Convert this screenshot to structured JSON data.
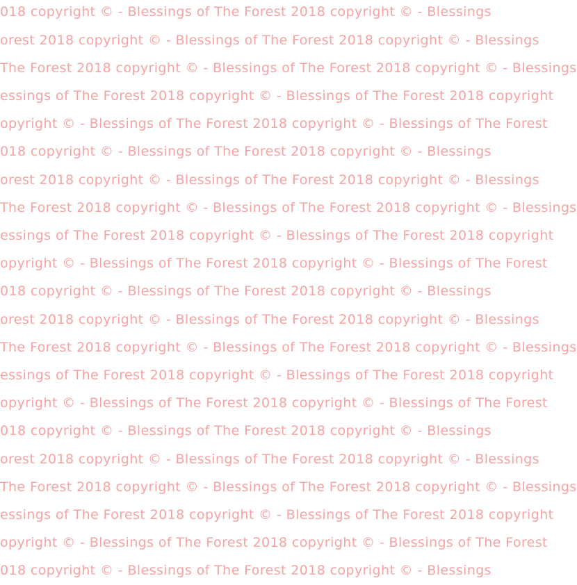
{
  "watermark": {
    "phrase": "Blessings of The Forest 2018 copyright © - ",
    "color": "#f5a3a3",
    "rows": [
      "018 copyright © - Blessings of The Forest 2018 copyright © - Blessings",
      "orest 2018 copyright © - Blessings of The Forest 2018 copyright © - Blessings",
      " The Forest 2018 copyright © - Blessings of The Forest 2018 copyright © - Blessings",
      "essings of The Forest 2018 copyright © - Blessings of The Forest 2018 copyright",
      "opyright © - Blessings of The Forest 2018 copyright © - Blessings of The Forest",
      "018 copyright © - Blessings of The Forest 2018 copyright © - Blessings",
      "orest 2018 copyright © - Blessings of The Forest 2018 copyright © - Blessings",
      " The Forest 2018 copyright © - Blessings of The Forest 2018 copyright © - Blessings",
      "essings of The Forest 2018 copyright © - Blessings of The Forest 2018 copyright",
      "opyright © - Blessings of The Forest 2018 copyright © - Blessings of The Forest",
      "018 copyright © - Blessings of The Forest 2018 copyright © - Blessings",
      "orest 2018 copyright © - Blessings of The Forest 2018 copyright © - Blessings",
      " The Forest 2018 copyright © - Blessings of The Forest 2018 copyright © - Blessings",
      "essings of The Forest 2018 copyright © - Blessings of The Forest 2018 copyright",
      "opyright © - Blessings of The Forest 2018 copyright © - Blessings of The Forest",
      "018 copyright © - Blessings of The Forest 2018 copyright © - Blessings",
      "orest 2018 copyright © - Blessings of The Forest 2018 copyright © - Blessings",
      " The Forest 2018 copyright © - Blessings of The Forest 2018 copyright © - Blessings",
      "essings of The Forest 2018 copyright © - Blessings of The Forest 2018 copyright",
      "opyright © - Blessings of The Forest 2018 copyright © - Blessings of The Forest",
      "018 copyright © - Blessings of The Forest 2018 copyright © - Blessings"
    ]
  }
}
